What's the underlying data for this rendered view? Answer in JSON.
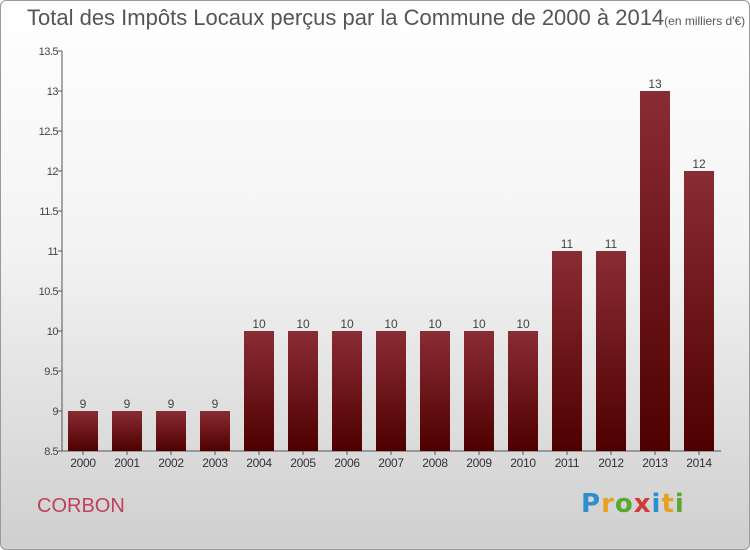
{
  "header": {
    "title": "Total des Impôts Locaux perçus par la Commune de 2000 à 2014",
    "unit": "(en milliers d'€)"
  },
  "footer": {
    "commune": "CORBON",
    "logo_text": "Proxiti"
  },
  "colors": {
    "bar_top": "#8a2c34",
    "bar_bottom": "#4e0000",
    "commune": "#c04060",
    "title": "#555555"
  },
  "chart_data": {
    "type": "bar",
    "title": "Total des Impôts Locaux perçus par la Commune de 2000 à 2014",
    "xlabel": "",
    "ylabel": "",
    "categories": [
      "2000",
      "2001",
      "2002",
      "2003",
      "2004",
      "2005",
      "2006",
      "2007",
      "2008",
      "2009",
      "2010",
      "2011",
      "2012",
      "2013",
      "2014"
    ],
    "values": [
      9,
      9,
      9,
      9,
      10,
      10,
      10,
      10,
      10,
      10,
      10,
      11,
      11,
      13,
      12
    ],
    "ylim": [
      8.5,
      13.5
    ],
    "yticks": [
      "8.5",
      "9",
      "9.5",
      "10",
      "10.5",
      "11",
      "11.5",
      "12",
      "12.5",
      "13",
      "13.5"
    ],
    "grid": false
  }
}
